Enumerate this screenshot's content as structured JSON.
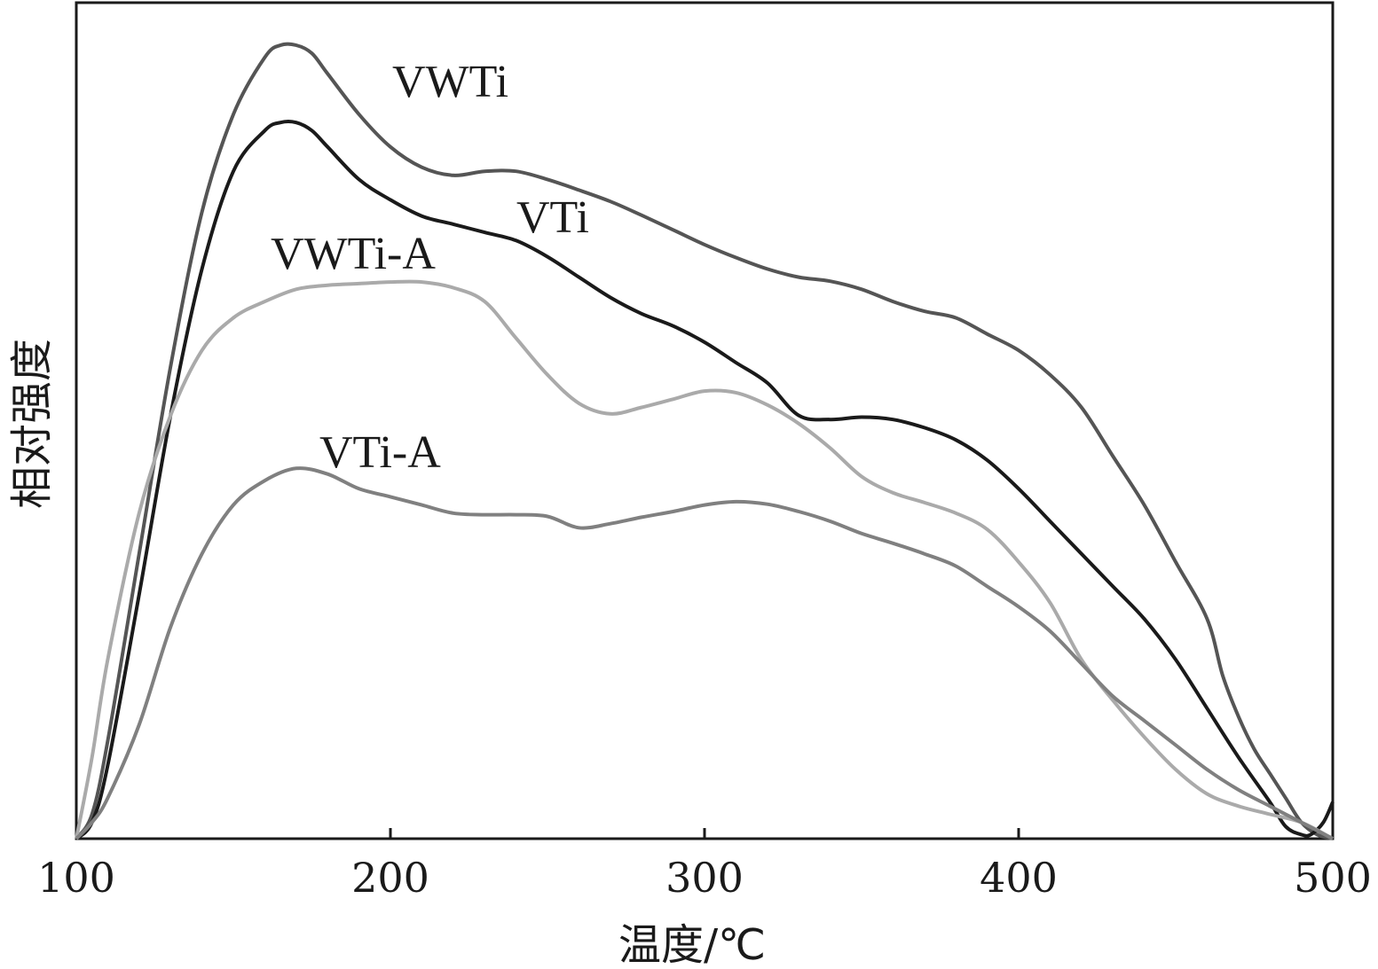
{
  "chart_data": {
    "type": "line",
    "xlabel": "温度/℃",
    "ylabel": "相对强度",
    "xlim": [
      100,
      500
    ],
    "ylim": [
      0,
      1
    ],
    "xticks": [
      "100",
      "200",
      "300",
      "400",
      "500"
    ],
    "grid": false,
    "legend": "inline labels",
    "series": [
      {
        "name": "VWTi",
        "color": "#555555",
        "points": [
          [
            100,
            0
          ],
          [
            105,
            0.03
          ],
          [
            110,
            0.12
          ],
          [
            120,
            0.35
          ],
          [
            130,
            0.58
          ],
          [
            140,
            0.77
          ],
          [
            150,
            0.89
          ],
          [
            160,
            0.96
          ],
          [
            165,
            0.975
          ],
          [
            170,
            0.975
          ],
          [
            175,
            0.965
          ],
          [
            180,
            0.94
          ],
          [
            190,
            0.89
          ],
          [
            200,
            0.85
          ],
          [
            210,
            0.825
          ],
          [
            220,
            0.815
          ],
          [
            230,
            0.82
          ],
          [
            240,
            0.82
          ],
          [
            250,
            0.81
          ],
          [
            260,
            0.797
          ],
          [
            270,
            0.783
          ],
          [
            280,
            0.766
          ],
          [
            290,
            0.748
          ],
          [
            300,
            0.73
          ],
          [
            310,
            0.714
          ],
          [
            320,
            0.7
          ],
          [
            330,
            0.69
          ],
          [
            340,
            0.685
          ],
          [
            350,
            0.675
          ],
          [
            360,
            0.66
          ],
          [
            370,
            0.648
          ],
          [
            380,
            0.64
          ],
          [
            390,
            0.62
          ],
          [
            400,
            0.6
          ],
          [
            410,
            0.57
          ],
          [
            420,
            0.53
          ],
          [
            430,
            0.47
          ],
          [
            440,
            0.41
          ],
          [
            450,
            0.34
          ],
          [
            460,
            0.27
          ],
          [
            465,
            0.2
          ],
          [
            470,
            0.15
          ],
          [
            475,
            0.11
          ],
          [
            480,
            0.08
          ],
          [
            485,
            0.05
          ],
          [
            490,
            0.02
          ],
          [
            495,
            0.005
          ],
          [
            500,
            0
          ]
        ]
      },
      {
        "name": "VTi",
        "color": "#1a1a1a",
        "points": [
          [
            100,
            0
          ],
          [
            105,
            0.02
          ],
          [
            110,
            0.09
          ],
          [
            120,
            0.3
          ],
          [
            130,
            0.52
          ],
          [
            140,
            0.7
          ],
          [
            150,
            0.82
          ],
          [
            160,
            0.87
          ],
          [
            165,
            0.88
          ],
          [
            170,
            0.88
          ],
          [
            175,
            0.87
          ],
          [
            180,
            0.85
          ],
          [
            190,
            0.81
          ],
          [
            200,
            0.785
          ],
          [
            210,
            0.765
          ],
          [
            220,
            0.755
          ],
          [
            230,
            0.745
          ],
          [
            240,
            0.735
          ],
          [
            250,
            0.715
          ],
          [
            260,
            0.69
          ],
          [
            270,
            0.665
          ],
          [
            280,
            0.645
          ],
          [
            290,
            0.63
          ],
          [
            300,
            0.61
          ],
          [
            310,
            0.585
          ],
          [
            320,
            0.56
          ],
          [
            330,
            0.52
          ],
          [
            340,
            0.515
          ],
          [
            350,
            0.518
          ],
          [
            360,
            0.515
          ],
          [
            370,
            0.505
          ],
          [
            380,
            0.49
          ],
          [
            390,
            0.465
          ],
          [
            400,
            0.43
          ],
          [
            410,
            0.39
          ],
          [
            420,
            0.35
          ],
          [
            430,
            0.31
          ],
          [
            440,
            0.27
          ],
          [
            450,
            0.22
          ],
          [
            460,
            0.16
          ],
          [
            470,
            0.1
          ],
          [
            480,
            0.045
          ],
          [
            485,
            0.015
          ],
          [
            490,
            0.005
          ],
          [
            493,
            0.005
          ],
          [
            497,
            0.02
          ],
          [
            500,
            0.045
          ]
        ]
      },
      {
        "name": "VWTi-A",
        "color": "#aaaaaa",
        "points": [
          [
            100,
            0
          ],
          [
            105,
            0.1
          ],
          [
            110,
            0.22
          ],
          [
            120,
            0.4
          ],
          [
            130,
            0.52
          ],
          [
            140,
            0.6
          ],
          [
            150,
            0.64
          ],
          [
            160,
            0.66
          ],
          [
            170,
            0.675
          ],
          [
            180,
            0.68
          ],
          [
            190,
            0.682
          ],
          [
            200,
            0.684
          ],
          [
            210,
            0.684
          ],
          [
            220,
            0.677
          ],
          [
            230,
            0.66
          ],
          [
            240,
            0.615
          ],
          [
            250,
            0.57
          ],
          [
            260,
            0.535
          ],
          [
            270,
            0.522
          ],
          [
            280,
            0.53
          ],
          [
            290,
            0.54
          ],
          [
            300,
            0.55
          ],
          [
            310,
            0.548
          ],
          [
            320,
            0.533
          ],
          [
            330,
            0.51
          ],
          [
            340,
            0.48
          ],
          [
            350,
            0.445
          ],
          [
            360,
            0.425
          ],
          [
            370,
            0.413
          ],
          [
            380,
            0.4
          ],
          [
            390,
            0.38
          ],
          [
            400,
            0.34
          ],
          [
            410,
            0.29
          ],
          [
            420,
            0.22
          ],
          [
            430,
            0.17
          ],
          [
            440,
            0.125
          ],
          [
            450,
            0.085
          ],
          [
            460,
            0.055
          ],
          [
            470,
            0.04
          ],
          [
            480,
            0.03
          ],
          [
            490,
            0.02
          ],
          [
            500,
            0
          ]
        ]
      },
      {
        "name": "VTi-A",
        "color": "#808080",
        "points": [
          [
            100,
            0
          ],
          [
            105,
            0.02
          ],
          [
            110,
            0.05
          ],
          [
            120,
            0.14
          ],
          [
            130,
            0.26
          ],
          [
            140,
            0.35
          ],
          [
            150,
            0.41
          ],
          [
            160,
            0.44
          ],
          [
            170,
            0.455
          ],
          [
            180,
            0.448
          ],
          [
            190,
            0.43
          ],
          [
            200,
            0.42
          ],
          [
            210,
            0.41
          ],
          [
            220,
            0.4
          ],
          [
            230,
            0.398
          ],
          [
            240,
            0.398
          ],
          [
            250,
            0.396
          ],
          [
            260,
            0.382
          ],
          [
            270,
            0.387
          ],
          [
            280,
            0.395
          ],
          [
            290,
            0.402
          ],
          [
            300,
            0.41
          ],
          [
            310,
            0.414
          ],
          [
            320,
            0.411
          ],
          [
            330,
            0.402
          ],
          [
            340,
            0.39
          ],
          [
            350,
            0.375
          ],
          [
            360,
            0.363
          ],
          [
            370,
            0.35
          ],
          [
            380,
            0.335
          ],
          [
            390,
            0.31
          ],
          [
            400,
            0.285
          ],
          [
            410,
            0.255
          ],
          [
            420,
            0.215
          ],
          [
            430,
            0.175
          ],
          [
            440,
            0.145
          ],
          [
            450,
            0.115
          ],
          [
            460,
            0.085
          ],
          [
            470,
            0.06
          ],
          [
            480,
            0.04
          ],
          [
            490,
            0.02
          ],
          [
            500,
            0
          ]
        ]
      }
    ]
  }
}
